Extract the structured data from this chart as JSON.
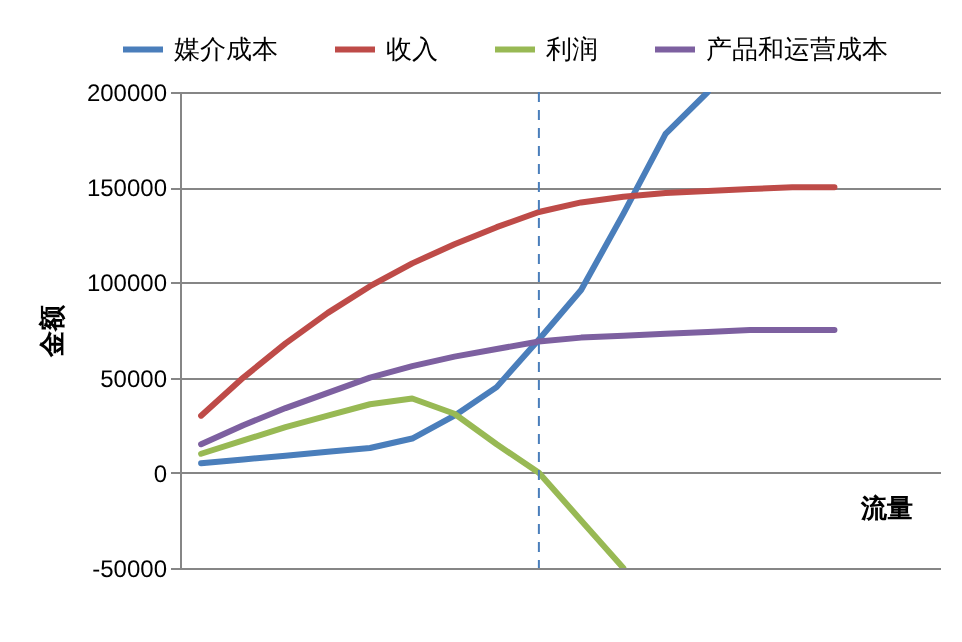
{
  "chart_data": {
    "type": "line",
    "xlabel": "流量",
    "ylabel": "金额",
    "categories": [
      null,
      null,
      null,
      null,
      null,
      null,
      null,
      null,
      null,
      null,
      null,
      null,
      null,
      null,
      null,
      null,
      null,
      null
    ],
    "tick_labels": "y",
    "ylim": [
      -50000,
      200000
    ],
    "yticks": [
      -50000,
      0,
      50000,
      100000,
      150000,
      200000
    ],
    "grid": "y",
    "legend": "top",
    "line_style": "solid",
    "series": [
      {
        "name": "媒介成本",
        "color": "#4a7ebb",
        "values": [
          5000,
          7000,
          9000,
          11000,
          13000,
          18000,
          30000,
          45000,
          70000,
          96000,
          136000,
          178000,
          200000,
          null,
          null,
          null,
          null,
          null
        ]
      },
      {
        "name": "收入",
        "color": "#be4b48",
        "values": [
          30000,
          50000,
          68000,
          84000,
          98000,
          110000,
          120000,
          129000,
          137000,
          142000,
          145000,
          147000,
          148000,
          149000,
          150000,
          150000,
          null,
          null
        ]
      },
      {
        "name": "利润",
        "color": "#98b954",
        "values": [
          10000,
          17000,
          24000,
          30000,
          36000,
          39000,
          31000,
          15000,
          0,
          -25000,
          -50000,
          null,
          null,
          null,
          null,
          null,
          null,
          null
        ]
      },
      {
        "name": "产品和运营成本",
        "color": "#7d60a0",
        "values": [
          15000,
          25000,
          34000,
          42000,
          50000,
          56000,
          61000,
          65000,
          69000,
          71000,
          72000,
          73000,
          74000,
          75000,
          75000,
          75000,
          null,
          null
        ]
      }
    ]
  }
}
